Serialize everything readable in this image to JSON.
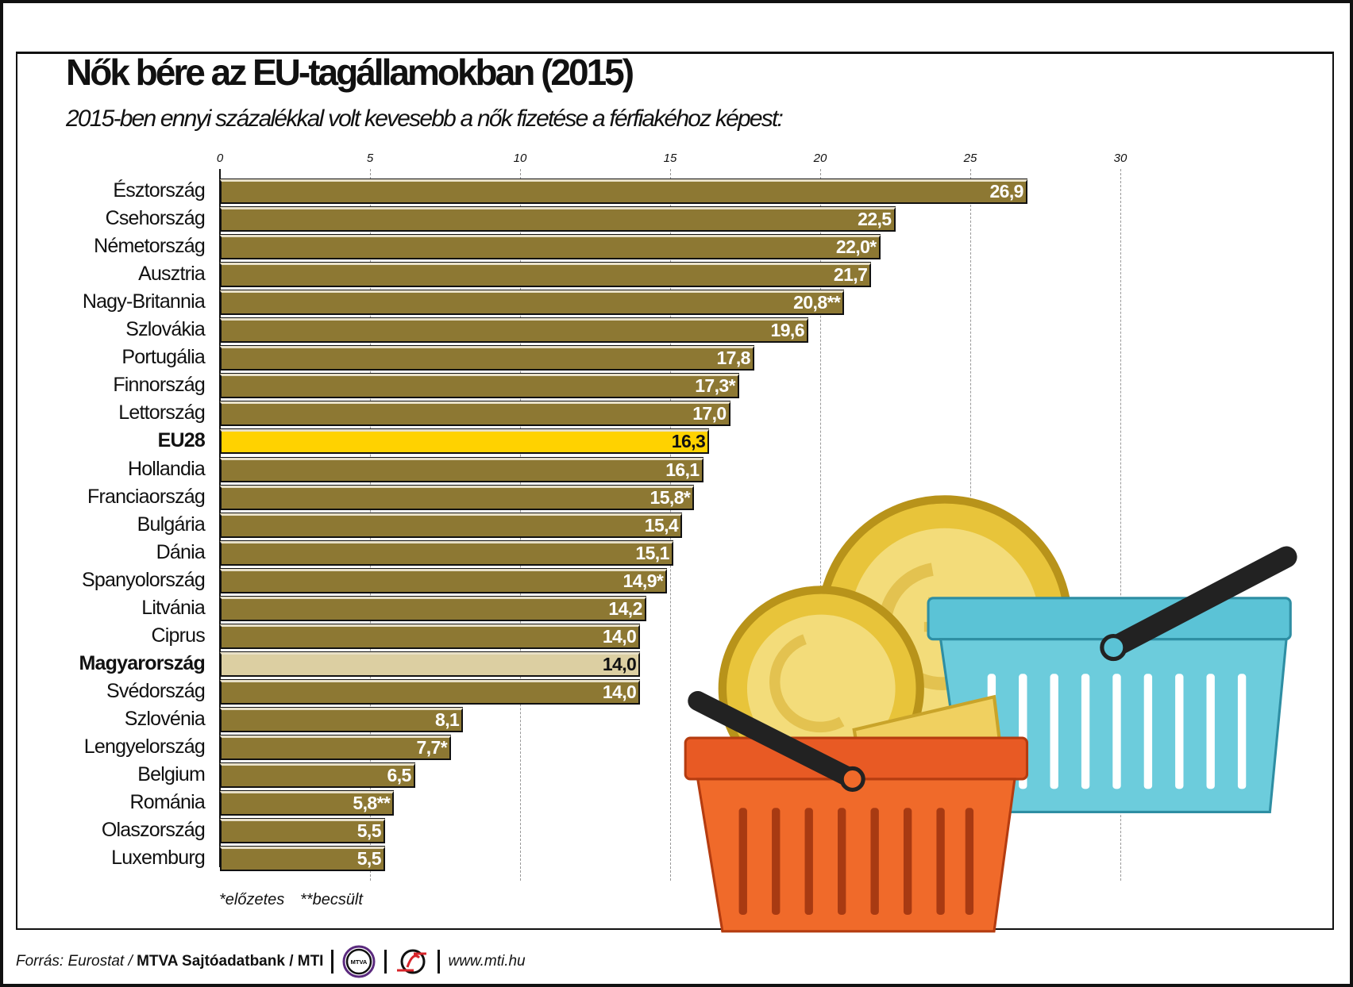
{
  "chart_data": {
    "type": "bar",
    "orientation": "horizontal",
    "title": "Nők bére az EU-tagállamokban (2015)",
    "subtitle": "2015-ben ennyi százalékkal volt kevesebb a nők fizetése a férfiakéhoz képest:",
    "xlim": [
      0,
      30
    ],
    "xticks": [
      "0",
      "5",
      "10",
      "15",
      "20",
      "25",
      "30"
    ],
    "grid": true,
    "categories": [
      "Észtország",
      "Csehország",
      "Németország",
      "Ausztria",
      "Nagy-Britannia",
      "Szlovákia",
      "Portugália",
      "Finnország",
      "Lettország",
      "EU28",
      "Hollandia",
      "Franciaország",
      "Bulgária",
      "Dánia",
      "Spanyolország",
      "Litvánia",
      "Ciprus",
      "Magyarország",
      "Svédország",
      "Szlovénia",
      "Lengyelország",
      "Belgium",
      "Románia",
      "Olaszország",
      "Luxemburg"
    ],
    "values": [
      26.9,
      22.5,
      22.0,
      21.7,
      20.8,
      19.6,
      17.8,
      17.3,
      17.0,
      16.3,
      16.1,
      15.8,
      15.4,
      15.1,
      14.9,
      14.2,
      14.0,
      14.0,
      14.0,
      8.1,
      7.7,
      6.5,
      5.8,
      5.5,
      5.5
    ],
    "value_labels": [
      "26,9",
      "22,5",
      "22,0*",
      "21,7",
      "20,8**",
      "19,6",
      "17,8",
      "17,3*",
      "17,0",
      "16,3",
      "16,1",
      "15,8*",
      "15,4",
      "15,1",
      "14,9*",
      "14,2",
      "14,0",
      "14,0",
      "14,0",
      "8,1",
      "7,7*",
      "6,5",
      "5,8**",
      "5,5",
      "5,5"
    ],
    "highlight": {
      "EU28": "#ffd200",
      "Magyarország": "#dccfa2"
    },
    "bar_color": "#8d7833",
    "notes": [
      "*előzetes",
      "**becsült"
    ]
  },
  "footer": {
    "source_prefix": "Forrás: Eurostat /",
    "source_bold": "MTVA Sajtóadatbank / MTI",
    "logo_mtva": "MTVA",
    "url": "www.mti.hu"
  }
}
